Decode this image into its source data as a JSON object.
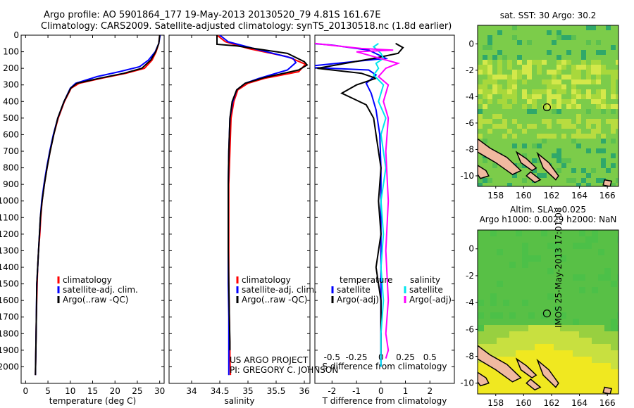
{
  "header": {
    "line1": "Argo profile: AO 5901864_177 19-May-2013 20130520_79 4.81S 161.67E",
    "line2": "Climatology: CARS2009. Satellite-adjusted climatology: synTS_20130518.nc (1.8d earlier)"
  },
  "colors": {
    "climatology": "#ff0000",
    "satellite": "#0000ff",
    "argo": "#000000",
    "sat_salinity": "#00e5ee",
    "argo_salinity": "#ff00ff",
    "map_land": "#f0b9a0"
  },
  "chart_data": [
    {
      "type": "line",
      "name": "temperature-profile",
      "xlabel": "temperature (deg C)",
      "ylabel": "",
      "xlim": [
        -1,
        31
      ],
      "ylim": [
        2100,
        0
      ],
      "xticks": [
        0,
        5,
        10,
        15,
        20,
        25,
        30
      ],
      "yticks": [
        0,
        100,
        200,
        300,
        400,
        500,
        600,
        700,
        800,
        900,
        1000,
        1100,
        1200,
        1300,
        1400,
        1500,
        1600,
        1700,
        1800,
        1900,
        2000
      ],
      "legend": [
        "climatology",
        "satellite-adj. clim.",
        "Argo(..raw -QC)"
      ],
      "series": [
        {
          "name": "climatology",
          "color": "#ff0000",
          "x": [
            30,
            29.8,
            29.2,
            28.3,
            26.6,
            22.5,
            17,
            12,
            10.2,
            8.7,
            7.3,
            6.3,
            5.5,
            4.8,
            4.2,
            3.7,
            3.4,
            3.2,
            2.9,
            2.7,
            2.6,
            2.4,
            2.3,
            2.2
          ],
          "y": [
            0,
            50,
            100,
            150,
            200,
            230,
            260,
            290,
            320,
            400,
            500,
            600,
            700,
            800,
            900,
            1000,
            1100,
            1200,
            1300,
            1400,
            1500,
            1700,
            1900,
            2050
          ]
        },
        {
          "name": "satellite",
          "color": "#0000ff",
          "x": [
            30.1,
            29.8,
            29,
            27.5,
            25.5,
            21,
            16,
            11.2,
            10,
            8.6,
            7.2,
            6.2,
            5.4,
            4.7,
            4.1,
            3.6,
            3.3,
            3.1,
            2.9,
            2.7,
            2.5,
            2.4,
            2.3,
            2.2
          ],
          "y": [
            0,
            50,
            100,
            150,
            190,
            220,
            250,
            290,
            320,
            400,
            500,
            600,
            700,
            800,
            900,
            1000,
            1100,
            1200,
            1300,
            1400,
            1500,
            1700,
            1900,
            2050
          ]
        },
        {
          "name": "argo",
          "color": "#000000",
          "x": [
            30,
            29.8,
            29.1,
            28,
            26,
            22,
            16.5,
            11.5,
            10.1,
            8.6,
            7.2,
            6.3,
            5.5,
            4.8,
            4.2,
            3.7,
            3.3,
            3.1,
            2.9,
            2.7,
            2.5,
            2.4,
            2.3,
            2.2
          ],
          "y": [
            0,
            50,
            100,
            150,
            200,
            230,
            260,
            290,
            320,
            400,
            500,
            600,
            700,
            800,
            900,
            1000,
            1100,
            1200,
            1300,
            1400,
            1500,
            1700,
            1900,
            2050
          ]
        }
      ]
    },
    {
      "type": "line",
      "name": "salinity-profile",
      "xlabel": "salinity",
      "xlim": [
        33.6,
        36.1
      ],
      "ylim": [
        2100,
        0
      ],
      "xticks": [
        34,
        34.5,
        35,
        35.5,
        36
      ],
      "legend": [
        "climatology",
        "satellite-adj. clim.",
        "Argo(..raw -QC)"
      ],
      "series": [
        {
          "name": "climatology",
          "color": "#ff0000",
          "x": [
            34.45,
            34.6,
            35,
            35.7,
            36.02,
            35.9,
            35.3,
            35,
            34.82,
            34.75,
            34.7,
            34.68,
            34.66,
            34.66,
            34.66,
            34.66,
            34.67,
            34.68,
            34.68,
            34.69
          ],
          "y": [
            0,
            40,
            80,
            130,
            175,
            220,
            260,
            290,
            330,
            400,
            500,
            700,
            900,
            1100,
            1300,
            1500,
            1700,
            1900,
            1950,
            2050
          ]
        },
        {
          "name": "satellite",
          "color": "#0000ff",
          "x": [
            34.5,
            34.65,
            35.1,
            35.8,
            35.85,
            35.7,
            35.2,
            34.95,
            34.8,
            34.73,
            34.68,
            34.66,
            34.65,
            34.65,
            34.65,
            34.65,
            34.66,
            34.66,
            34.66
          ],
          "y": [
            0,
            40,
            80,
            140,
            165,
            210,
            260,
            290,
            330,
            400,
            500,
            700,
            900,
            1100,
            1300,
            1500,
            1700,
            1900,
            2050
          ]
        },
        {
          "name": "argo",
          "color": "#000000",
          "x": [
            34.45,
            34.45,
            34.8,
            35.7,
            36,
            36.05,
            35.9,
            35.3,
            34.95,
            34.8,
            34.72,
            34.68,
            34.66,
            34.65,
            34.65,
            34.65,
            34.66,
            34.67,
            34.68,
            34.68
          ],
          "y": [
            0,
            55,
            65,
            110,
            160,
            180,
            210,
            255,
            290,
            330,
            400,
            500,
            700,
            900,
            1100,
            1300,
            1500,
            1700,
            1850,
            1900
          ]
        }
      ]
    },
    {
      "type": "line",
      "name": "difference-profile",
      "xlabel": "T difference from climatology",
      "xlabel_top": "S difference from climatology",
      "xlim": [
        -2.7,
        3
      ],
      "ylim": [
        2100,
        0
      ],
      "xticks_bottom": [
        "-2",
        "-1",
        "0",
        "1",
        "2"
      ],
      "xticks_bottom_values": [
        -2,
        -1,
        0,
        1,
        2
      ],
      "xticks_top": [
        "-0.5",
        "-0.25",
        "0",
        "0.25",
        "0.5"
      ],
      "xticks_top_values": [
        -2,
        -1,
        0,
        1,
        2
      ],
      "legend_left_title": "temperature",
      "legend_right_title": "salinity",
      "legend": [
        "satellite",
        "Argo(-adj)",
        "satellite",
        "Argo(-adj)"
      ],
      "series": [
        {
          "name": "T-satellite",
          "color": "#0000ff",
          "x": [
            -2.8,
            -2,
            -0.5,
            0.2,
            -2.8,
            -2.8,
            -0.5,
            -0.2,
            -0.6,
            -0.4,
            -0.2,
            -0.05,
            0,
            0,
            0,
            0,
            0,
            0,
            0
          ],
          "y": [
            50,
            60,
            90,
            140,
            185,
            195,
            210,
            240,
            290,
            350,
            450,
            600,
            800,
            1000,
            1200,
            1400,
            1600,
            1800,
            2000
          ]
        },
        {
          "name": "T-argo",
          "color": "#000000",
          "x": [
            0.6,
            0.9,
            0.7,
            -0.3,
            -2.6,
            -0.8,
            -0.2,
            -1,
            -1.6,
            -0.6,
            -0.3,
            -0.2,
            -0.1,
            0,
            -0.1,
            0,
            -0.2,
            0,
            0
          ],
          "y": [
            50,
            75,
            110,
            140,
            200,
            230,
            260,
            300,
            350,
            420,
            500,
            600,
            700,
            800,
            1000,
            1200,
            1400,
            1600,
            1950
          ]
        },
        {
          "name": "S-satellite",
          "color": "#00e5ee",
          "x": [
            -0.1,
            -0.3,
            0,
            0.1,
            -0.2,
            -0.1,
            -0.3,
            0.1,
            -0.1,
            0.2,
            0,
            0.2,
            0,
            0.1,
            0,
            0.1,
            0,
            0
          ],
          "y": [
            50,
            70,
            110,
            140,
            170,
            200,
            240,
            300,
            400,
            500,
            600,
            800,
            1000,
            1200,
            1400,
            1600,
            1800,
            2000
          ]
        },
        {
          "name": "S-argo",
          "color": "#ff00ff",
          "x": [
            -2.7,
            -1.8,
            -0.8,
            0.5,
            -1,
            0.7,
            0.2,
            -0.1,
            0.3,
            0.1,
            0.3,
            0.2,
            0.3,
            0.2,
            0.3,
            0.2,
            0.3,
            0.2
          ],
          "y": [
            50,
            65,
            80,
            90,
            100,
            170,
            200,
            250,
            300,
            400,
            500,
            700,
            1000,
            1300,
            1600,
            1800,
            1900,
            1950
          ]
        }
      ]
    }
  ],
  "maps": {
    "top": {
      "title": "sat. SST: 30 Argo: 30.2",
      "xticks": [
        "158",
        "160",
        "162",
        "164",
        "166"
      ],
      "yticks": [
        "0",
        "-2",
        "-4",
        "-6",
        "-8",
        "-10"
      ]
    },
    "bottom": {
      "title_line1": "Altim. SLA: -0.025",
      "title_line2": "Argo h1000: 0.0029 h2000: NaN",
      "xticks": [
        "158",
        "160",
        "162",
        "164",
        "166"
      ],
      "yticks": [
        "0",
        "-2",
        "-4",
        "-6",
        "-8",
        "-10"
      ]
    },
    "argo_position": {
      "lon": 161.67,
      "lat": -4.81
    }
  },
  "credits": {
    "project": "US ARGO PROJECT",
    "pi": "PI: GREGORY C. JOHNSON",
    "stamp": "IMOS 25-May-2013 17:01:08"
  }
}
